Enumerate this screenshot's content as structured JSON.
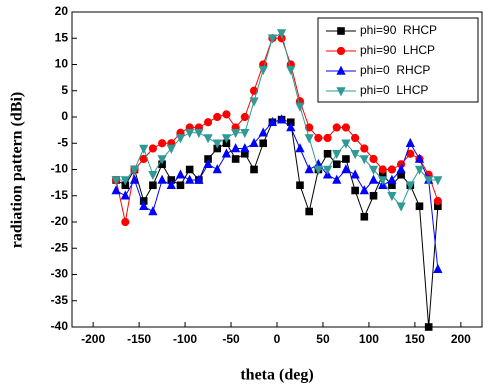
{
  "chart_data": {
    "type": "line",
    "xlabel": "theta (deg)",
    "ylabel": "radiation pattern (dBi)",
    "x": [
      -175,
      -165,
      -155,
      -145,
      -135,
      -125,
      -115,
      -105,
      -95,
      -85,
      -75,
      -65,
      -55,
      -45,
      -35,
      -25,
      -15,
      -5,
      5,
      15,
      25,
      35,
      45,
      55,
      65,
      75,
      85,
      95,
      105,
      115,
      125,
      135,
      145,
      155,
      165,
      175
    ],
    "series": [
      {
        "name": "phi=90  RHCP",
        "color": "#000000",
        "marker": "square",
        "values": [
          -12,
          -13,
          -10,
          -16,
          -13,
          -9,
          -12,
          -13,
          -10,
          -12,
          -8,
          -6,
          -5,
          -8,
          -7,
          -10,
          -5,
          -1,
          -0.5,
          -1,
          -13,
          -18,
          -10,
          -7,
          -9,
          -8,
          -14,
          -19,
          -15,
          -11,
          -13,
          -11,
          -13,
          -17,
          -40,
          -17
        ]
      },
      {
        "name": "phi=90  LHCP",
        "color": "#ff0000",
        "marker": "circle",
        "values": [
          -12,
          -20,
          -10,
          -8,
          -6,
          -5,
          -5,
          -3,
          -2,
          -2,
          -1,
          0,
          0.5,
          -2,
          0,
          5,
          10,
          15,
          15,
          10,
          3,
          -2,
          -4,
          -4,
          -2,
          -2,
          -4,
          -6,
          -8,
          -10,
          -10,
          -9,
          -7,
          -8,
          -11,
          -16
        ]
      },
      {
        "name": "phi=0  RHCP",
        "color": "#0000ff",
        "marker": "triangle-up",
        "values": [
          -14,
          -15,
          -12,
          -17,
          -18,
          -12,
          -13,
          -11,
          -12,
          -12,
          -9,
          -10,
          -7,
          -6,
          -6,
          -5,
          -3,
          -1,
          -0.5,
          -2,
          -6,
          -10,
          -9,
          -11,
          -12,
          -10,
          -11,
          -14,
          -12,
          -13,
          -12,
          -10,
          -5,
          -8,
          -12,
          -29
        ]
      },
      {
        "name": "phi=0  LHCP",
        "color": "#2f9a96",
        "marker": "triangle-down",
        "values": [
          -12,
          -12,
          -10,
          -6,
          -11,
          -8,
          -6,
          -4,
          -3,
          -3,
          -4,
          -5,
          -4,
          -3,
          -3,
          3,
          9,
          15,
          16,
          9,
          2,
          -4,
          -10,
          -10,
          -7,
          -5,
          -7,
          -8,
          -10,
          -12,
          -15,
          -17,
          -13,
          -10,
          -12,
          -12
        ]
      }
    ],
    "xlim": [
      -223,
      223
    ],
    "ylim": [
      -40,
      20
    ],
    "xticks": [
      -200,
      -150,
      -100,
      -50,
      0,
      50,
      100,
      150,
      200
    ],
    "yticks": [
      20,
      15,
      10,
      5,
      0,
      -5,
      -10,
      -15,
      -20,
      -25,
      -30,
      -35,
      -40
    ],
    "legend": "upper right"
  }
}
